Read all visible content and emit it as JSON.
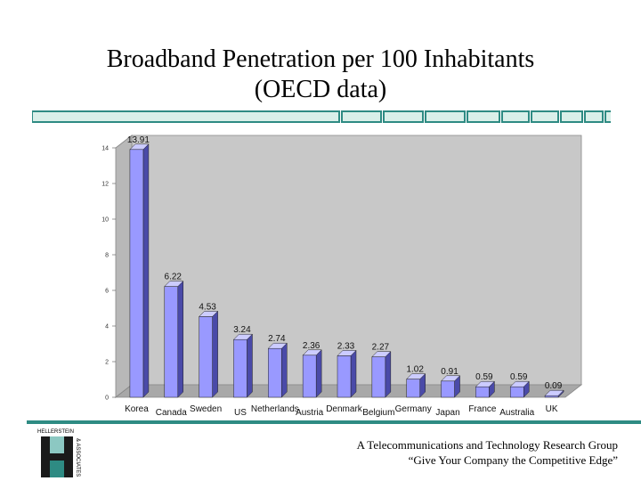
{
  "slide": {
    "title_line1": "Broadband Penetration per 100 Inhabitants",
    "title_line2": "(OECD data)",
    "footer_line1": "A Telecommunications and Technology Research Group",
    "footer_line2": "“Give Your Company the Competitive Edge”",
    "logo_text_left": "HELLERSTEIN",
    "logo_text_right": "& ASSOCIATES",
    "accent_color": "#2e8b83",
    "bar_color": "#9999ff"
  },
  "chart_data": {
    "type": "bar",
    "title": "",
    "xlabel": "",
    "ylabel": "",
    "ylim": [
      0,
      14
    ],
    "yticks": [
      0,
      2,
      4,
      6,
      8,
      10,
      12,
      14
    ],
    "grid": false,
    "legend": "none",
    "style": "3d",
    "categories": [
      "Korea",
      "Canada",
      "Sweden",
      "US",
      "Netherlands",
      "Austria",
      "Denmark",
      "Belgium",
      "Germany",
      "Japan",
      "France",
      "Australia",
      "UK"
    ],
    "values": [
      13.91,
      6.22,
      4.53,
      3.24,
      2.74,
      2.36,
      2.33,
      2.27,
      1.02,
      0.91,
      0.59,
      0.59,
      0.09
    ],
    "value_labels": [
      "13.91",
      "6.22",
      "4.53",
      "3.24",
      "2.74",
      "2.36",
      "2.33",
      "2.27",
      "1.02",
      "0.91",
      "0.59",
      "0.59",
      "0.09"
    ]
  }
}
